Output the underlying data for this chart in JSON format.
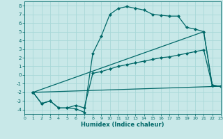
{
  "xlabel": "Humidex (Indice chaleur)",
  "background_color": "#c8e8e8",
  "grid_color": "#a8d8d8",
  "line_color": "#006868",
  "series1_x": [
    1,
    2,
    3,
    4,
    5,
    6,
    7,
    8,
    9,
    10,
    11,
    12,
    13,
    14,
    15,
    16,
    17,
    18,
    19,
    20,
    21,
    22,
    23
  ],
  "series1_y": [
    -2,
    -3.3,
    -3.0,
    -3.8,
    -3.8,
    -3.9,
    -4.3,
    2.5,
    4.5,
    7.0,
    7.7,
    7.9,
    7.7,
    7.5,
    7.0,
    6.9,
    6.8,
    6.8,
    5.5,
    5.3,
    5.0,
    -1.2,
    -1.3
  ],
  "series2_x": [
    1,
    2,
    3,
    4,
    5,
    6,
    7,
    8,
    9,
    10,
    11,
    12,
    13,
    14,
    15,
    16,
    17,
    18,
    19,
    20,
    21,
    22,
    23
  ],
  "series2_y": [
    -2,
    -3.3,
    -3.0,
    -3.8,
    -3.8,
    -3.5,
    -3.8,
    0.2,
    0.4,
    0.7,
    1.0,
    1.2,
    1.4,
    1.6,
    1.8,
    2.0,
    2.1,
    2.3,
    2.5,
    2.7,
    2.9,
    -1.2,
    -1.3
  ],
  "series3_x": [
    1,
    23
  ],
  "series3_y": [
    -2.0,
    -1.3
  ],
  "series4_x": [
    1,
    21,
    22,
    23
  ],
  "series4_y": [
    -2.0,
    5.0,
    -1.2,
    -1.3
  ],
  "xlim": [
    0,
    23
  ],
  "ylim": [
    -4.5,
    8.5
  ],
  "xticks": [
    0,
    1,
    2,
    3,
    4,
    5,
    6,
    7,
    8,
    9,
    10,
    11,
    12,
    13,
    14,
    15,
    16,
    17,
    18,
    19,
    20,
    21,
    22,
    23
  ],
  "yticks": [
    -4,
    -3,
    -2,
    -1,
    0,
    1,
    2,
    3,
    4,
    5,
    6,
    7,
    8
  ]
}
